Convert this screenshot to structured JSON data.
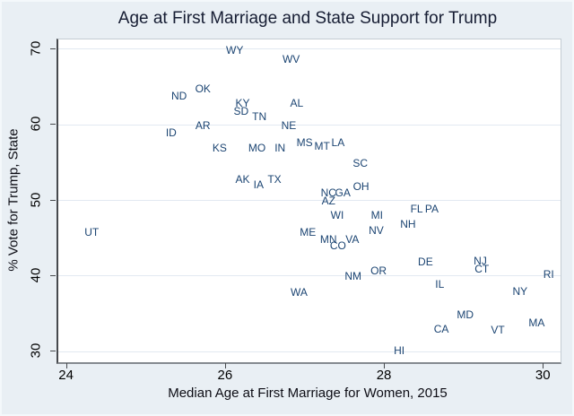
{
  "title": "Age at First Marriage and State Support for Trump",
  "colors": {
    "figure_background": "#e9eff4",
    "plot_background": "#ffffff",
    "state_label": "#1b4472",
    "title_text": "#161d33",
    "axis_text": "#000000",
    "gridline": "#e2e9f1",
    "axis_line": "#46494d"
  },
  "chart_data": {
    "type": "scatter",
    "marker": "state-abbreviation-text-labels",
    "title": "Age at First Marriage and State Support for Trump",
    "xlabel": "Median Age at First Marriage for Women, 2015",
    "ylabel": "% Vote for Trump, State",
    "xlim": [
      23.88,
      30.2
    ],
    "ylim": [
      28.6,
      71.3
    ],
    "xticks": [
      24,
      26,
      28,
      30
    ],
    "yticks": [
      30,
      40,
      50,
      60,
      70
    ],
    "grid": "horizontal",
    "legend": "none",
    "points": [
      {
        "label": "UT",
        "x": 24.3,
        "y": 45.8
      },
      {
        "label": "ID",
        "x": 25.3,
        "y": 59.0
      },
      {
        "label": "ND",
        "x": 25.4,
        "y": 63.8
      },
      {
        "label": "OK",
        "x": 25.7,
        "y": 64.8
      },
      {
        "label": "AR",
        "x": 25.7,
        "y": 59.9
      },
      {
        "label": "KS",
        "x": 25.91,
        "y": 56.9
      },
      {
        "label": "WY",
        "x": 26.1,
        "y": 69.9
      },
      {
        "label": "SD",
        "x": 26.18,
        "y": 61.8
      },
      {
        "label": "KY",
        "x": 26.2,
        "y": 62.9
      },
      {
        "label": "AK",
        "x": 26.2,
        "y": 52.8
      },
      {
        "label": "MO",
        "x": 26.38,
        "y": 57.0
      },
      {
        "label": "IA",
        "x": 26.4,
        "y": 52.1
      },
      {
        "label": "TN",
        "x": 26.41,
        "y": 61.1
      },
      {
        "label": "TX",
        "x": 26.6,
        "y": 52.8
      },
      {
        "label": "IN",
        "x": 26.67,
        "y": 56.9
      },
      {
        "label": "NE",
        "x": 26.78,
        "y": 59.9
      },
      {
        "label": "WV",
        "x": 26.81,
        "y": 68.7
      },
      {
        "label": "AL",
        "x": 26.88,
        "y": 62.9
      },
      {
        "label": "WA",
        "x": 26.91,
        "y": 37.9
      },
      {
        "label": "MS",
        "x": 26.98,
        "y": 57.7
      },
      {
        "label": "ME",
        "x": 27.02,
        "y": 45.8
      },
      {
        "label": "MT",
        "x": 27.2,
        "y": 57.2
      },
      {
        "label": "MN",
        "x": 27.28,
        "y": 44.8
      },
      {
        "label": "NC",
        "x": 27.28,
        "y": 51.0
      },
      {
        "label": "AZ",
        "x": 27.28,
        "y": 50.0
      },
      {
        "label": "WI",
        "x": 27.39,
        "y": 48.0
      },
      {
        "label": "LA",
        "x": 27.4,
        "y": 57.7
      },
      {
        "label": "CO",
        "x": 27.4,
        "y": 44.0
      },
      {
        "label": "GA",
        "x": 27.46,
        "y": 51.0
      },
      {
        "label": "VA",
        "x": 27.58,
        "y": 44.9
      },
      {
        "label": "NM",
        "x": 27.59,
        "y": 40.0
      },
      {
        "label": "SC",
        "x": 27.68,
        "y": 54.9
      },
      {
        "label": "OH",
        "x": 27.69,
        "y": 51.8
      },
      {
        "label": "NV",
        "x": 27.88,
        "y": 46.0
      },
      {
        "label": "MI",
        "x": 27.89,
        "y": 48.0
      },
      {
        "label": "OR",
        "x": 27.91,
        "y": 40.7
      },
      {
        "label": "HI",
        "x": 28.17,
        "y": 30.2
      },
      {
        "label": "NH",
        "x": 28.28,
        "y": 46.9
      },
      {
        "label": "FL",
        "x": 28.39,
        "y": 48.9
      },
      {
        "label": "DE",
        "x": 28.5,
        "y": 41.9
      },
      {
        "label": "PA",
        "x": 28.58,
        "y": 48.9
      },
      {
        "label": "IL",
        "x": 28.68,
        "y": 38.9
      },
      {
        "label": "CA",
        "x": 28.7,
        "y": 33.0
      },
      {
        "label": "MD",
        "x": 29.0,
        "y": 34.9
      },
      {
        "label": "NJ",
        "x": 29.19,
        "y": 42.0
      },
      {
        "label": "CT",
        "x": 29.21,
        "y": 40.9
      },
      {
        "label": "VT",
        "x": 29.41,
        "y": 32.9
      },
      {
        "label": "NY",
        "x": 29.69,
        "y": 38.0
      },
      {
        "label": "MA",
        "x": 29.9,
        "y": 33.8
      },
      {
        "label": "RI",
        "x": 30.05,
        "y": 40.2
      }
    ]
  }
}
